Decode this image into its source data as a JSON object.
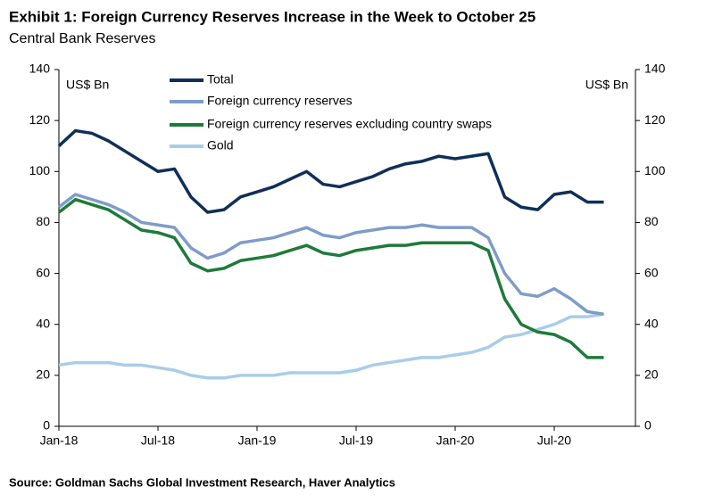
{
  "chart_data": {
    "type": "line",
    "title": "Exhibit 1: Foreign Currency Reserves Increase in the Week to October 25",
    "subtitle": "Central Bank Reserves",
    "source": "Source: Goldman Sachs Global Investment Research, Haver Analytics",
    "y_label": "US$ Bn",
    "y2_label": "US$ Bn",
    "categories": [
      "Jan-18",
      null,
      null,
      null,
      null,
      null,
      "Jul-18",
      null,
      null,
      null,
      null,
      null,
      "Jan-19",
      null,
      null,
      null,
      null,
      null,
      "Jul-19",
      null,
      null,
      null,
      null,
      null,
      "Jan-20",
      null,
      null,
      null,
      null,
      null,
      "Jul-20",
      null,
      null,
      null
    ],
    "series": [
      {
        "name": "Total",
        "color": "#0f2f57",
        "values": [
          110,
          116,
          115,
          112,
          108,
          104,
          100,
          101,
          90,
          84,
          85,
          90,
          92,
          94,
          97,
          100,
          95,
          94,
          96,
          98,
          101,
          103,
          104,
          106,
          105,
          106,
          107,
          90,
          86,
          85,
          91,
          92,
          88,
          88
        ]
      },
      {
        "name": "Foreign currency reserves",
        "color": "#7f9cc8",
        "values": [
          86,
          91,
          89,
          87,
          84,
          80,
          79,
          78,
          70,
          66,
          68,
          72,
          73,
          74,
          76,
          78,
          75,
          74,
          76,
          77,
          78,
          78,
          79,
          78,
          78,
          78,
          74,
          60,
          52,
          51,
          54,
          50,
          45,
          44
        ]
      },
      {
        "name": "Foreign currency reserves excluding country swaps",
        "color": "#1e7a3a",
        "values": [
          84,
          89,
          87,
          85,
          81,
          77,
          76,
          74,
          64,
          61,
          62,
          65,
          66,
          67,
          69,
          71,
          68,
          67,
          69,
          70,
          71,
          71,
          72,
          72,
          72,
          72,
          69,
          50,
          40,
          37,
          36,
          33,
          27,
          27
        ]
      },
      {
        "name": "Gold",
        "color": "#a9cde8",
        "values": [
          24,
          25,
          25,
          25,
          24,
          24,
          23,
          22,
          20,
          19,
          19,
          20,
          20,
          20,
          21,
          21,
          21,
          21,
          22,
          24,
          25,
          26,
          27,
          27,
          28,
          29,
          31,
          35,
          36,
          38,
          40,
          43,
          43,
          44
        ]
      }
    ],
    "ylim": [
      0,
      140
    ],
    "yticks": [
      0,
      20,
      40,
      60,
      80,
      100,
      120,
      140
    ],
    "y2lim": [
      0,
      140
    ],
    "y2ticks": [
      0,
      20,
      40,
      60,
      80,
      100,
      120,
      140
    ]
  }
}
